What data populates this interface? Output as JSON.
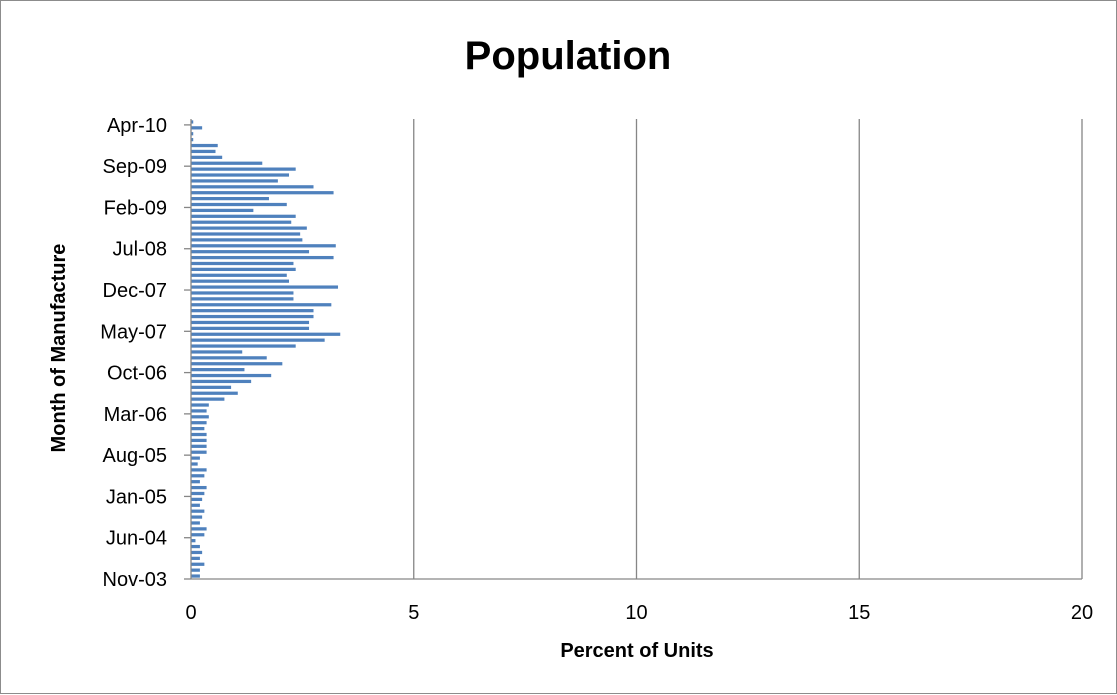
{
  "chart_data": {
    "type": "bar",
    "orientation": "horizontal",
    "title": "Population",
    "xlabel": "Percent of Units",
    "ylabel": "Month of Manufacture",
    "xlim": [
      0,
      20
    ],
    "x_ticks": [
      "0",
      "5",
      "10",
      "15",
      "20"
    ],
    "y_tick_labels": [
      "Nov-03",
      "Jun-04",
      "Jan-05",
      "Aug-05",
      "Mar-06",
      "Oct-06",
      "May-07",
      "Dec-07",
      "Jul-08",
      "Feb-09",
      "Sep-09",
      "Apr-10"
    ],
    "grid": "vertical",
    "legend": "none",
    "bar_color": "#4f81bd",
    "categories": [
      "Nov-03",
      "Dec-03",
      "Jan-04",
      "Feb-04",
      "Mar-04",
      "Apr-04",
      "May-04",
      "Jun-04",
      "Jul-04",
      "Aug-04",
      "Sep-04",
      "Oct-04",
      "Nov-04",
      "Dec-04",
      "Jan-05",
      "Feb-05",
      "Mar-05",
      "Apr-05",
      "May-05",
      "Jun-05",
      "Jul-05",
      "Aug-05",
      "Sep-05",
      "Oct-05",
      "Nov-05",
      "Dec-05",
      "Jan-06",
      "Feb-06",
      "Mar-06",
      "Apr-06",
      "May-06",
      "Jun-06",
      "Jul-06",
      "Aug-06",
      "Sep-06",
      "Oct-06",
      "Nov-06",
      "Dec-06",
      "Jan-07",
      "Feb-07",
      "Mar-07",
      "Apr-07",
      "May-07",
      "Jun-07",
      "Jul-07",
      "Aug-07",
      "Sep-07",
      "Oct-07",
      "Nov-07",
      "Dec-07",
      "Jan-08",
      "Feb-08",
      "Mar-08",
      "Apr-08",
      "May-08",
      "Jun-08",
      "Jul-08",
      "Aug-08",
      "Sep-08",
      "Oct-08",
      "Nov-08",
      "Dec-08",
      "Jan-09",
      "Feb-09",
      "Mar-09",
      "Apr-09",
      "May-09",
      "Jun-09",
      "Jul-09",
      "Aug-09",
      "Sep-09",
      "Oct-09",
      "Nov-09",
      "Dec-09",
      "Jan-10",
      "Feb-10",
      "Mar-10",
      "Apr-10"
    ],
    "values": [
      0.2,
      0.2,
      0.3,
      0.2,
      0.25,
      0.2,
      0.1,
      0.3,
      0.35,
      0.2,
      0.25,
      0.3,
      0.2,
      0.25,
      0.3,
      0.35,
      0.2,
      0.3,
      0.35,
      0.15,
      0.2,
      0.35,
      0.35,
      0.35,
      0.35,
      0.3,
      0.35,
      0.4,
      0.35,
      0.4,
      0.75,
      1.05,
      0.9,
      1.35,
      1.8,
      1.2,
      2.05,
      1.7,
      1.15,
      2.35,
      3.0,
      3.35,
      2.65,
      2.65,
      2.75,
      2.75,
      3.15,
      2.3,
      2.3,
      3.3,
      2.2,
      2.15,
      2.35,
      2.3,
      3.2,
      2.65,
      3.25,
      2.5,
      2.45,
      2.6,
      2.25,
      2.35,
      1.4,
      2.15,
      1.75,
      3.2,
      2.75,
      1.95,
      2.2,
      2.35,
      1.6,
      0.7,
      0.55,
      0.6,
      0.05,
      0.05,
      0.25,
      0.05
    ]
  }
}
